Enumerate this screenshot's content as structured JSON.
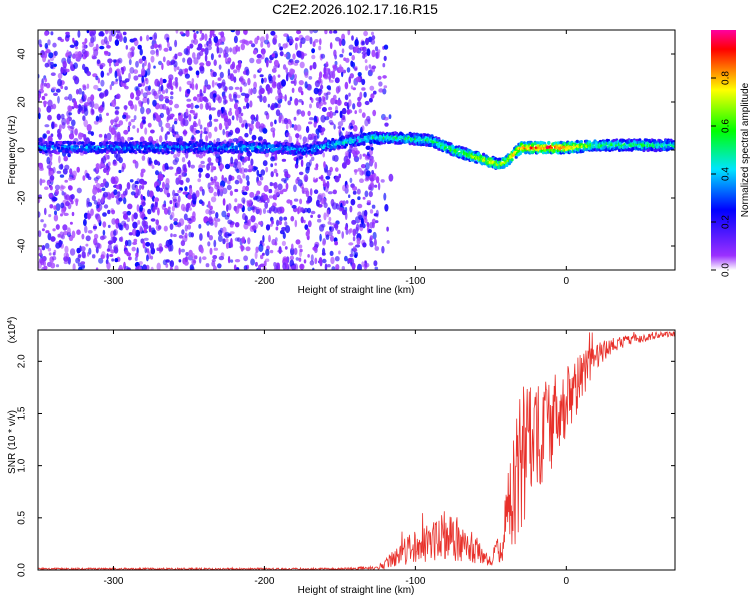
{
  "title": "C2E2.2026.102.17.16.R15",
  "chart_data": [
    {
      "type": "heatmap",
      "name": "spectrogram",
      "xlabel": "Height of straight line (km)",
      "ylabel": "Frequency (Hz)",
      "xlim": [
        -350,
        72
      ],
      "ylim": [
        -50,
        50
      ],
      "xticks": [
        -300,
        -200,
        -100,
        0
      ],
      "xtick_labels": [
        "-300",
        "-200",
        "-100",
        "0"
      ],
      "yticks": [
        -40,
        -20,
        0,
        20,
        40
      ],
      "ytick_labels": [
        "-40",
        "-20",
        "0",
        "20",
        "40"
      ],
      "colorbar": {
        "label": "Normalized spectral amplitude",
        "range": [
          0,
          1
        ],
        "ticks": [
          0.0,
          0.2,
          0.4,
          0.6,
          0.8
        ],
        "tick_labels": [
          "0.0",
          "0.2",
          "0.4",
          "0.6",
          "0.8"
        ],
        "colors": [
          "#ffffff",
          "#9b30ff",
          "#0000ff",
          "#00e5ff",
          "#00ff00",
          "#ffff00",
          "#ff0000",
          "#ff00a0"
        ]
      },
      "noise_region_end_km": -130,
      "signal_track": {
        "x": [
          -350,
          -300,
          -250,
          -200,
          -170,
          -150,
          -130,
          -110,
          -90,
          -75,
          -60,
          -50,
          -45,
          -40,
          -35,
          -30,
          -20,
          -10,
          0,
          20,
          40,
          72
        ],
        "freq_hz": [
          1,
          1,
          1,
          1,
          0,
          3,
          5,
          5,
          4,
          0,
          -3,
          -5,
          -6,
          -5,
          -2,
          1,
          1,
          1,
          1,
          2,
          2,
          2
        ],
        "amplitude": [
          0.35,
          0.35,
          0.35,
          0.4,
          0.35,
          0.45,
          0.5,
          0.5,
          0.55,
          0.6,
          0.7,
          0.75,
          0.7,
          0.75,
          0.8,
          0.85,
          0.9,
          0.95,
          0.9,
          0.55,
          0.55,
          0.5
        ]
      }
    },
    {
      "type": "line",
      "name": "snr",
      "xlabel": "Height of straight line (km)",
      "ylabel": "SNR (10 * v/v)",
      "y_multiplier": "(x10",
      "y_multiplier_exp": "4",
      "y_multiplier_close": ")",
      "xlim": [
        -350,
        72
      ],
      "ylim": [
        0,
        2.3
      ],
      "xticks": [
        -300,
        -200,
        -100,
        0
      ],
      "xtick_labels": [
        "-300",
        "-200",
        "-100",
        "0"
      ],
      "yticks": [
        0.0,
        0.5,
        1.0,
        1.5,
        2.0
      ],
      "ytick_labels": [
        "0.0",
        "0.5",
        "1.0",
        "1.5",
        "2.0"
      ],
      "color": "#e8302a",
      "series": [
        {
          "name": "SNR",
          "x": [
            -350,
            -250,
            -150,
            -125,
            -115,
            -105,
            -95,
            -85,
            -75,
            -65,
            -55,
            -50,
            -45,
            -40,
            -35,
            -30,
            -25,
            -20,
            -10,
            0,
            10,
            20,
            30,
            40,
            50,
            60,
            72
          ],
          "y": [
            0.01,
            0.01,
            0.01,
            0.02,
            0.1,
            0.2,
            0.25,
            0.28,
            0.3,
            0.28,
            0.12,
            0.08,
            0.2,
            0.45,
            0.7,
            1.0,
            1.1,
            1.2,
            1.4,
            1.6,
            1.85,
            2.05,
            2.15,
            2.2,
            2.22,
            2.25,
            2.27
          ]
        }
      ],
      "noise_envelope": {
        "x": [
          -350,
          -150,
          -125,
          -115,
          -105,
          -95,
          -85,
          -75,
          -65,
          -55,
          -50,
          -45,
          -40,
          -35,
          -30,
          -25,
          -20,
          -10,
          0,
          10,
          20,
          30,
          40,
          50,
          60,
          72
        ],
        "amp": [
          0.01,
          0.01,
          0.02,
          0.08,
          0.15,
          0.18,
          0.2,
          0.22,
          0.2,
          0.08,
          0.05,
          0.15,
          0.35,
          0.6,
          0.75,
          0.7,
          0.55,
          0.45,
          0.35,
          0.25,
          0.12,
          0.08,
          0.05,
          0.04,
          0.03,
          0.03
        ]
      }
    }
  ]
}
